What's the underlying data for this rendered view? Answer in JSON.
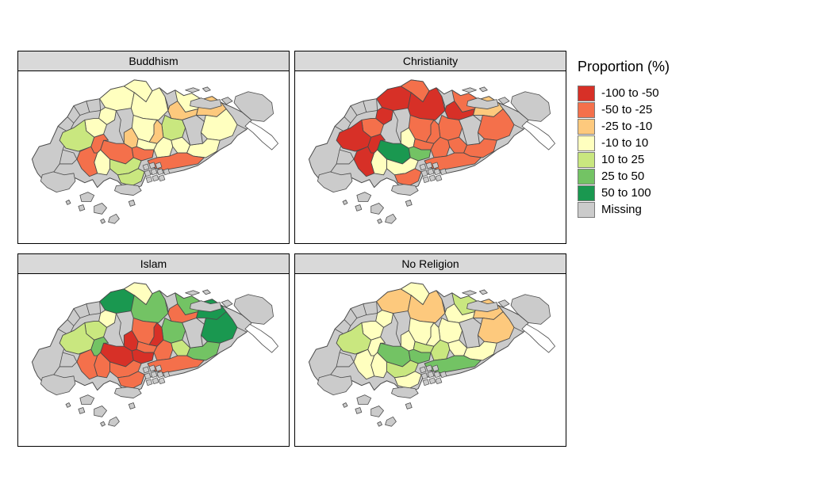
{
  "figure": {
    "background": "#ffffff",
    "strip_bg": "#d9d9d9",
    "facets": [
      {
        "label": "Buddhism"
      },
      {
        "label": "Christianity"
      },
      {
        "label": "Islam"
      },
      {
        "label": "No Religion"
      }
    ],
    "legend": {
      "title": "Proportion (%)",
      "items": [
        {
          "label": "-100 to -50",
          "color": "#d73027"
        },
        {
          "label": "-50 to -25",
          "color": "#f4704b"
        },
        {
          "label": "-25 to -10",
          "color": "#fdc97d"
        },
        {
          "label": "-10 to 10",
          "color": "#ffffbf"
        },
        {
          "label": "10 to 25",
          "color": "#c9e77f"
        },
        {
          "label": "25 to 50",
          "color": "#73c364"
        },
        {
          "label": "50 to 100",
          "color": "#1a9850"
        },
        {
          "label": "Missing",
          "color": "#cbcbcb"
        }
      ]
    }
  },
  "chart_data": {
    "type": "choropleth",
    "title": "",
    "legend_title": "Proportion (%)",
    "legend_position": "right",
    "facets": [
      "Buddhism",
      "Christianity",
      "Islam",
      "No Religion"
    ],
    "categories": [
      "-100 to -50",
      "-50 to -25",
      "-25 to -10",
      "-10 to 10",
      "10 to 25",
      "25 to 50",
      "50 to 100",
      "Missing"
    ],
    "category_colors": {
      "-100 to -50": "#d73027",
      "-50 to -25": "#f4704b",
      "-25 to -10": "#fdc97d",
      "-10 to 10": "#ffffbf",
      "10 to 25": "#c9e77f",
      "25 to 50": "#73c364",
      "50 to 100": "#1a9850",
      "Missing": "#cbcbcb"
    },
    "regions": [
      {
        "id": "r01",
        "values": {
          "Buddhism": "-10 to 10",
          "Christianity": "-100 to -50",
          "Islam": "50 to 100",
          "No Religion": "-25 to -10"
        }
      },
      {
        "id": "r02",
        "values": {
          "Buddhism": "-10 to 10",
          "Christianity": "-50 to -25",
          "Islam": "-10 to 10",
          "No Religion": "-10 to 10"
        }
      },
      {
        "id": "r03",
        "values": {
          "Buddhism": "-10 to 10",
          "Christianity": "-100 to -50",
          "Islam": "25 to 50",
          "No Religion": "-25 to -10"
        }
      },
      {
        "id": "r04",
        "values": {
          "Buddhism": "-10 to 10",
          "Christianity": "-100 to -50",
          "Islam": "-10 to 10",
          "No Religion": "-10 to 10"
        }
      },
      {
        "id": "r05",
        "values": {
          "Buddhism": "-10 to 10",
          "Christianity": "-50 to -25",
          "Islam": "25 to 50",
          "No Religion": "10 to 25"
        }
      },
      {
        "id": "r06",
        "values": {
          "Buddhism": "-25 to -10",
          "Christianity": "-100 to -50",
          "Islam": "-50 to -25",
          "No Religion": "-10 to 10"
        }
      },
      {
        "id": "r07",
        "values": {
          "Buddhism": "-25 to -10",
          "Christianity": "-25 to -10",
          "Islam": "50 to 100",
          "No Religion": "-25 to -10"
        }
      },
      {
        "id": "r08",
        "values": {
          "Buddhism": "-10 to 10",
          "Christianity": "-50 to -25",
          "Islam": "50 to 100",
          "No Religion": "-25 to -10"
        }
      },
      {
        "id": "r09",
        "values": {
          "Buddhism": "10 to 25",
          "Christianity": "-50 to -25",
          "Islam": "25 to 50",
          "No Religion": "-10 to 10"
        }
      },
      {
        "id": "r10",
        "values": {
          "Buddhism": "-25 to -10",
          "Christianity": "-50 to -25",
          "Islam": "-100 to -50",
          "No Religion": "-10 to 10"
        }
      },
      {
        "id": "r11",
        "values": {
          "Buddhism": "-10 to 10",
          "Christianity": "-50 to -25",
          "Islam": "-50 to -25",
          "No Religion": "-10 to 10"
        }
      },
      {
        "id": "r12",
        "values": {
          "Buddhism": "-25 to -10",
          "Christianity": "-10 to 10",
          "Islam": "-100 to -50",
          "No Religion": "-10 to 10"
        }
      },
      {
        "id": "r13",
        "values": {
          "Buddhism": "-10 to 10",
          "Christianity": "-50 to -25",
          "Islam": "-50 to -25",
          "No Religion": "10 to 25"
        }
      },
      {
        "id": "r14",
        "values": {
          "Buddhism": "-50 to -25",
          "Christianity": "50 to 100",
          "Islam": "-100 to -50",
          "No Religion": "25 to 50"
        }
      },
      {
        "id": "r15",
        "values": {
          "Buddhism": "-50 to -25",
          "Christianity": "25 to 50",
          "Islam": "-100 to -50",
          "No Religion": "25 to 50"
        }
      },
      {
        "id": "r16",
        "values": {
          "Buddhism": "-10 to 10",
          "Christianity": "-50 to -25",
          "Islam": "-50 to -25",
          "No Religion": "10 to 25"
        }
      },
      {
        "id": "r17",
        "values": {
          "Buddhism": "-10 to 10",
          "Christianity": "-50 to -25",
          "Islam": "10 to 25",
          "No Religion": "-10 to 10"
        }
      },
      {
        "id": "r18",
        "values": {
          "Buddhism": "-10 to 10",
          "Christianity": "-50 to -25",
          "Islam": "25 to 50",
          "No Religion": "-10 to 10"
        }
      },
      {
        "id": "r19",
        "values": {
          "Buddhism": "-50 to -25",
          "Christianity": "-50 to -25",
          "Islam": "-50 to -25",
          "No Religion": "25 to 50"
        }
      },
      {
        "id": "r20",
        "values": {
          "Buddhism": "10 to 25",
          "Christianity": "-10 to 10",
          "Islam": "-50 to -25",
          "No Religion": "10 to 25"
        }
      },
      {
        "id": "r21",
        "values": {
          "Buddhism": "10 to 25",
          "Christianity": "-50 to -25",
          "Islam": "-50 to -25",
          "No Religion": "-10 to 10"
        }
      },
      {
        "id": "r22",
        "values": {
          "Buddhism": "-10 to 10",
          "Christianity": "-10 to 10",
          "Islam": "-50 to -25",
          "No Religion": "-10 to 10"
        }
      },
      {
        "id": "r23",
        "values": {
          "Buddhism": "-50 to -25",
          "Christianity": "-100 to -50",
          "Islam": "-50 to -25",
          "No Religion": "-10 to 10"
        }
      },
      {
        "id": "r24",
        "values": {
          "Buddhism": "-50 to -25",
          "Christianity": "-100 to -50",
          "Islam": "25 to 50",
          "No Religion": "-10 to 10"
        }
      },
      {
        "id": "r25",
        "values": {
          "Buddhism": "-10 to 10",
          "Christianity": "-50 to -25",
          "Islam": "10 to 25",
          "No Religion": "-10 to 10"
        }
      },
      {
        "id": "r26",
        "values": {
          "Buddhism": "10 to 25",
          "Christianity": "-100 to -50",
          "Islam": "10 to 25",
          "No Religion": "10 to 25"
        }
      }
    ]
  }
}
